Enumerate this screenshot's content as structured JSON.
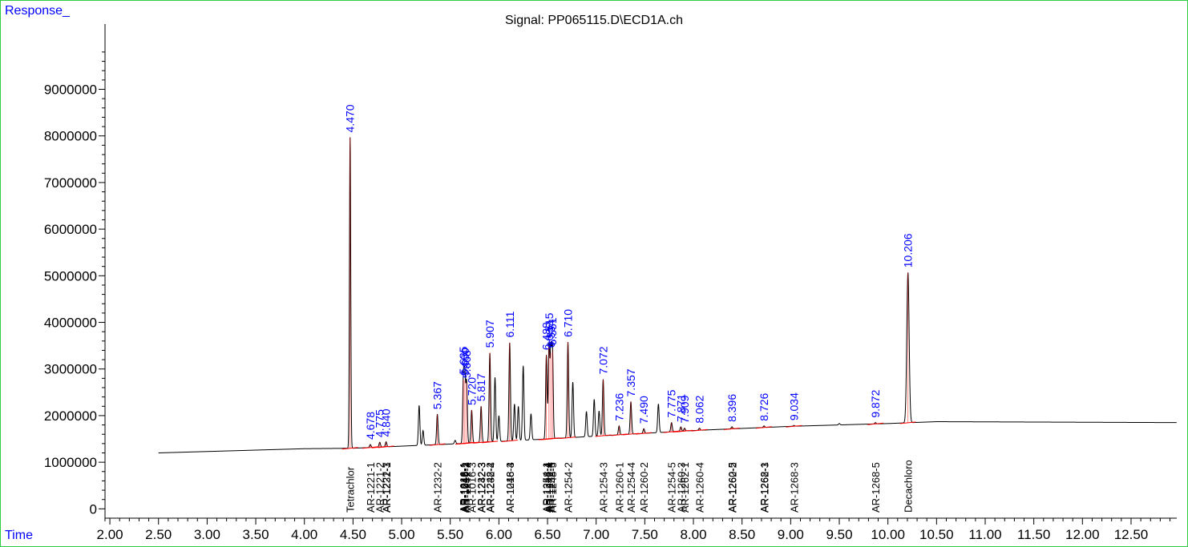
{
  "chart_data": {
    "type": "line",
    "title": "Signal: PP065115.D\\ECD1A.ch",
    "ylabel": "Response_",
    "xlabel": "Time",
    "xlim": [
      1.95,
      12.97
    ],
    "ylim": [
      -200000,
      10400000
    ],
    "x_ticks": [
      2.0,
      2.5,
      3.0,
      3.5,
      4.0,
      4.5,
      5.0,
      5.5,
      6.0,
      6.5,
      7.0,
      7.5,
      8.0,
      8.5,
      9.0,
      9.5,
      10.0,
      10.5,
      11.0,
      11.5,
      12.0,
      12.5
    ],
    "x_tick_labels": [
      "2.00",
      "2.50",
      "3.00",
      "3.50",
      "4.00",
      "4.50",
      "5.00",
      "5.50",
      "6.00",
      "6.50",
      "7.00",
      "7.50",
      "8.00",
      "8.50",
      "9.00",
      "9.50",
      "10.00",
      "10.50",
      "11.00",
      "11.50",
      "12.00",
      "12.50"
    ],
    "y_ticks": [
      0,
      1000000,
      2000000,
      3000000,
      4000000,
      5000000,
      6000000,
      7000000,
      8000000,
      9000000
    ],
    "y_tick_labels": [
      "0",
      "1000000",
      "2000000",
      "3000000",
      "4000000",
      "5000000",
      "6000000",
      "7000000",
      "8000000",
      "9000000"
    ],
    "baseline": [
      [
        2.5,
        1200000
      ],
      [
        4.0,
        1290000
      ],
      [
        4.5,
        1300000
      ],
      [
        5.5,
        1390000
      ],
      [
        6.5,
        1500000
      ],
      [
        7.0,
        1560000
      ],
      [
        8.0,
        1680000
      ],
      [
        9.0,
        1770000
      ],
      [
        10.0,
        1830000
      ],
      [
        10.5,
        1870000
      ],
      [
        12.97,
        1850000
      ]
    ],
    "peaks": [
      {
        "rt": 4.47,
        "height": 7970000,
        "label": "4.470",
        "show": true
      },
      {
        "rt": 4.678,
        "height": 1380000,
        "label": "4.678",
        "show": true
      },
      {
        "rt": 4.775,
        "height": 1430000,
        "label": "4.775",
        "show": true
      },
      {
        "rt": 4.84,
        "height": 1440000,
        "label": "4.840",
        "show": true
      },
      {
        "rt": 5.18,
        "height": 2220000,
        "label": "",
        "show": false
      },
      {
        "rt": 5.22,
        "height": 1680000,
        "label": "",
        "show": false
      },
      {
        "rt": 5.367,
        "height": 2030000,
        "label": "5.367",
        "show": true
      },
      {
        "rt": 5.55,
        "height": 1470000,
        "label": "",
        "show": false
      },
      {
        "rt": 5.635,
        "height": 2780000,
        "label": "5.635",
        "show": true
      },
      {
        "rt": 5.65,
        "height": 2750000,
        "label": "5.650",
        "show": true
      },
      {
        "rt": 5.668,
        "height": 2700000,
        "label": "5.668",
        "show": true
      },
      {
        "rt": 5.72,
        "height": 2120000,
        "label": "5.720",
        "show": true
      },
      {
        "rt": 5.817,
        "height": 2200000,
        "label": "5.817",
        "show": true
      },
      {
        "rt": 5.907,
        "height": 3350000,
        "label": "5.907",
        "show": true
      },
      {
        "rt": 5.96,
        "height": 2820000,
        "label": "",
        "show": false
      },
      {
        "rt": 6.0,
        "height": 2000000,
        "label": "",
        "show": false
      },
      {
        "rt": 6.111,
        "height": 3570000,
        "label": "6.111",
        "show": true
      },
      {
        "rt": 6.16,
        "height": 2250000,
        "label": "",
        "show": false
      },
      {
        "rt": 6.2,
        "height": 2200000,
        "label": "",
        "show": false
      },
      {
        "rt": 6.25,
        "height": 3070000,
        "label": "",
        "show": false
      },
      {
        "rt": 6.33,
        "height": 2040000,
        "label": "",
        "show": false
      },
      {
        "rt": 6.488,
        "height": 3300000,
        "label": "6.488",
        "show": true
      },
      {
        "rt": 6.515,
        "height": 3500000,
        "label": "6.515",
        "show": true
      },
      {
        "rt": 6.534,
        "height": 3350000,
        "label": "6.534",
        "show": true
      },
      {
        "rt": 6.551,
        "height": 3400000,
        "label": "6.551",
        "show": true
      },
      {
        "rt": 6.71,
        "height": 3580000,
        "label": "6.710",
        "show": true
      },
      {
        "rt": 6.76,
        "height": 2720000,
        "label": "",
        "show": false
      },
      {
        "rt": 6.9,
        "height": 2090000,
        "label": "",
        "show": false
      },
      {
        "rt": 6.98,
        "height": 2350000,
        "label": "",
        "show": false
      },
      {
        "rt": 7.03,
        "height": 2100000,
        "label": "",
        "show": false
      },
      {
        "rt": 7.072,
        "height": 2780000,
        "label": "7.072",
        "show": true
      },
      {
        "rt": 7.236,
        "height": 1780000,
        "label": "7.236",
        "show": true
      },
      {
        "rt": 7.357,
        "height": 2300000,
        "label": "7.357",
        "show": true
      },
      {
        "rt": 7.49,
        "height": 1720000,
        "label": "7.490",
        "show": true
      },
      {
        "rt": 7.64,
        "height": 2250000,
        "label": "",
        "show": false
      },
      {
        "rt": 7.775,
        "height": 1850000,
        "label": "7.775",
        "show": true
      },
      {
        "rt": 7.871,
        "height": 1760000,
        "label": "7.871",
        "show": true
      },
      {
        "rt": 7.909,
        "height": 1730000,
        "label": "7.909",
        "show": true
      },
      {
        "rt": 8.062,
        "height": 1730000,
        "label": "8.062",
        "show": true
      },
      {
        "rt": 8.396,
        "height": 1760000,
        "label": "8.396",
        "show": true
      },
      {
        "rt": 8.726,
        "height": 1780000,
        "label": "8.726",
        "show": true
      },
      {
        "rt": 9.034,
        "height": 1790000,
        "label": "9.034",
        "show": true
      },
      {
        "rt": 9.5,
        "height": 1830000,
        "label": "",
        "show": false
      },
      {
        "rt": 9.872,
        "height": 1850000,
        "label": "9.872",
        "show": true
      },
      {
        "rt": 10.206,
        "height": 5070000,
        "label": "10.206",
        "show": true
      }
    ],
    "compound_labels": [
      {
        "rt": 4.47,
        "label": "Tetrachlor"
      },
      {
        "rt": 4.678,
        "label": "AR-1221-1"
      },
      {
        "rt": 4.775,
        "label": "AR-1221-2"
      },
      {
        "rt": 4.84,
        "label": "AR-1221-3"
      },
      {
        "rt": 4.842,
        "label": "AR-1232-1"
      },
      {
        "rt": 5.367,
        "label": "AR-1232-2"
      },
      {
        "rt": 5.635,
        "label": "AR-1016-1"
      },
      {
        "rt": 5.64,
        "label": "AR-1242-1"
      },
      {
        "rt": 5.645,
        "label": "AR-1248-1"
      },
      {
        "rt": 5.65,
        "label": "AR-1016-2"
      },
      {
        "rt": 5.668,
        "label": "AR-1242-2"
      },
      {
        "rt": 5.72,
        "label": "AR-1016-3"
      },
      {
        "rt": 5.817,
        "label": "AR-1232-3"
      },
      {
        "rt": 5.82,
        "label": "AR-1242-3"
      },
      {
        "rt": 5.907,
        "label": "AR-1248-2"
      },
      {
        "rt": 5.91,
        "label": "AR-1232-4"
      },
      {
        "rt": 6.111,
        "label": "AR-1016-4"
      },
      {
        "rt": 6.114,
        "label": "AR-1248-3"
      },
      {
        "rt": 6.488,
        "label": "AR-1254-1"
      },
      {
        "rt": 6.492,
        "label": "AR-1248-4"
      },
      {
        "rt": 6.515,
        "label": "AR-1242-4"
      },
      {
        "rt": 6.534,
        "label": "AR-1232-5"
      },
      {
        "rt": 6.551,
        "label": "AR-1248-5"
      },
      {
        "rt": 6.71,
        "label": "AR-1254-2"
      },
      {
        "rt": 7.072,
        "label": "AR-1254-3"
      },
      {
        "rt": 7.236,
        "label": "AR-1260-1"
      },
      {
        "rt": 7.357,
        "label": "AR-1254-4"
      },
      {
        "rt": 7.49,
        "label": "AR-1260-2"
      },
      {
        "rt": 7.775,
        "label": "AR-1254-5"
      },
      {
        "rt": 7.871,
        "label": "AR-1260-3"
      },
      {
        "rt": 7.909,
        "label": "AR-1262-1"
      },
      {
        "rt": 8.062,
        "label": "AR-1260-4"
      },
      {
        "rt": 8.396,
        "label": "AR-1260-5"
      },
      {
        "rt": 8.4,
        "label": "AR-1262-2"
      },
      {
        "rt": 8.726,
        "label": "AR-1268-1"
      },
      {
        "rt": 8.73,
        "label": "AR-1262-3"
      },
      {
        "rt": 9.034,
        "label": "AR-1268-3"
      },
      {
        "rt": 9.872,
        "label": "AR-1268-5"
      },
      {
        "rt": 10.206,
        "label": "Decachloro"
      }
    ]
  },
  "colors": {
    "trace": "#000000",
    "peak_label": "#0000ff",
    "integration": "#ff0000",
    "frame": "#2ecc40"
  }
}
